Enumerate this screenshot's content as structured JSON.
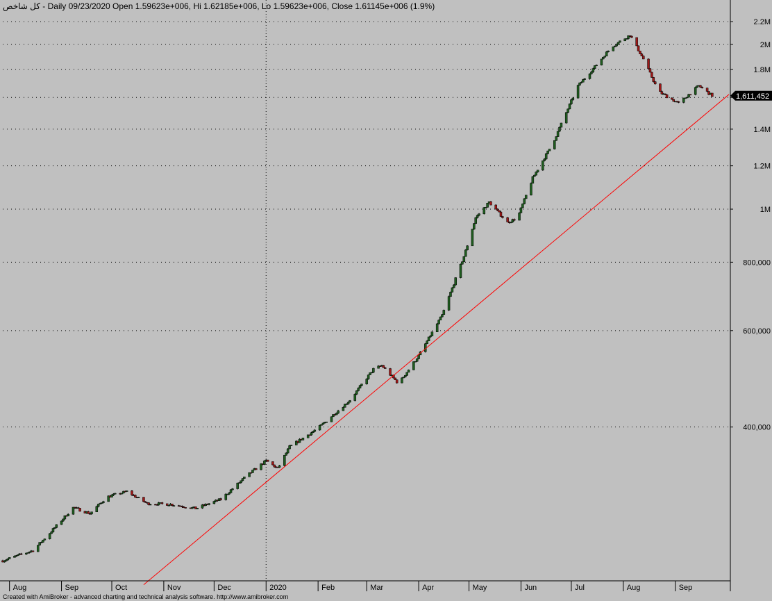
{
  "header": {
    "text": "کل شاخص - Daily 09/23/2020 Open 1.59623e+006, Hi 1.62185e+006, Lo 1.59623e+006, Close 1.61145e+006 (1.9%)"
  },
  "footer": {
    "text": "Created with AmiBroker - advanced charting and technical analysis software. http://www.amibroker.com"
  },
  "last_value_label": "1,611,452",
  "colors": {
    "background": "#c0c0c0",
    "up_candle": "#1f5e1f",
    "down_candle": "#a01818",
    "trendline": "#ff0000",
    "grid": "#000000"
  },
  "chart_data": {
    "type": "candlestick",
    "y_scale": "log",
    "ylim": [
      215000,
      2280000
    ],
    "y_ticks": [
      {
        "value": 400000,
        "label": "400,000"
      },
      {
        "value": 600000,
        "label": "600,000"
      },
      {
        "value": 800000,
        "label": "800,000"
      },
      {
        "value": 1000000,
        "label": "1M"
      },
      {
        "value": 1200000,
        "label": "1.2M"
      },
      {
        "value": 1400000,
        "label": "1.4M"
      },
      {
        "value": 1600000,
        "label": "1.6M"
      },
      {
        "value": 1800000,
        "label": "1.8M"
      },
      {
        "value": 2000000,
        "label": "2M"
      },
      {
        "value": 2200000,
        "label": "2.2M"
      }
    ],
    "x_ticks": [
      {
        "date": "2019-08",
        "label": "Aug"
      },
      {
        "date": "2019-09",
        "label": "Sep"
      },
      {
        "date": "2019-10",
        "label": "Oct"
      },
      {
        "date": "2019-11",
        "label": "Nov"
      },
      {
        "date": "2019-12",
        "label": "Dec"
      },
      {
        "date": "2020-01",
        "label": "2020"
      },
      {
        "date": "2020-02",
        "label": "Feb"
      },
      {
        "date": "2020-03",
        "label": "Mar"
      },
      {
        "date": "2020-04",
        "label": "Apr"
      },
      {
        "date": "2020-05",
        "label": "May"
      },
      {
        "date": "2020-06",
        "label": "Jun"
      },
      {
        "date": "2020-07",
        "label": "Jul"
      },
      {
        "date": "2020-08",
        "label": "Aug"
      },
      {
        "date": "2020-09",
        "label": "Sep"
      }
    ],
    "close_path": [
      {
        "date": "2019-07-28",
        "value": 228000
      },
      {
        "date": "2019-08-15",
        "value": 238000
      },
      {
        "date": "2019-08-25",
        "value": 256000
      },
      {
        "date": "2019-09-08",
        "value": 285000
      },
      {
        "date": "2019-09-18",
        "value": 278000
      },
      {
        "date": "2019-09-28",
        "value": 298000
      },
      {
        "date": "2019-10-10",
        "value": 305000
      },
      {
        "date": "2019-10-22",
        "value": 290000
      },
      {
        "date": "2019-11-05",
        "value": 289000
      },
      {
        "date": "2019-11-20",
        "value": 284000
      },
      {
        "date": "2019-12-05",
        "value": 295000
      },
      {
        "date": "2019-12-20",
        "value": 325000
      },
      {
        "date": "2020-01-01",
        "value": 347000
      },
      {
        "date": "2020-01-08",
        "value": 336000
      },
      {
        "date": "2020-01-15",
        "value": 368000
      },
      {
        "date": "2020-02-01",
        "value": 398000
      },
      {
        "date": "2020-02-20",
        "value": 448000
      },
      {
        "date": "2020-03-05",
        "value": 510000
      },
      {
        "date": "2020-03-10",
        "value": 518000
      },
      {
        "date": "2020-03-20",
        "value": 480000
      },
      {
        "date": "2020-04-01",
        "value": 540000
      },
      {
        "date": "2020-04-15",
        "value": 640000
      },
      {
        "date": "2020-04-28",
        "value": 820000
      },
      {
        "date": "2020-05-05",
        "value": 965000
      },
      {
        "date": "2020-05-13",
        "value": 1030000
      },
      {
        "date": "2020-05-24",
        "value": 945000
      },
      {
        "date": "2020-05-30",
        "value": 965000
      },
      {
        "date": "2020-06-08",
        "value": 1140000
      },
      {
        "date": "2020-06-20",
        "value": 1320000
      },
      {
        "date": "2020-07-05",
        "value": 1680000
      },
      {
        "date": "2020-07-15",
        "value": 1820000
      },
      {
        "date": "2020-07-25",
        "value": 1980000
      },
      {
        "date": "2020-08-05",
        "value": 2080000
      },
      {
        "date": "2020-08-13",
        "value": 1880000
      },
      {
        "date": "2020-08-22",
        "value": 1640000
      },
      {
        "date": "2020-09-03",
        "value": 1560000
      },
      {
        "date": "2020-09-15",
        "value": 1680000
      },
      {
        "date": "2020-09-23",
        "value": 1611452
      }
    ],
    "trendline": {
      "start": {
        "date": "2019-10-20",
        "value": 206000
      },
      "end": {
        "date": "2020-10-03",
        "value": 1620000
      }
    },
    "last_close": 1611452
  }
}
